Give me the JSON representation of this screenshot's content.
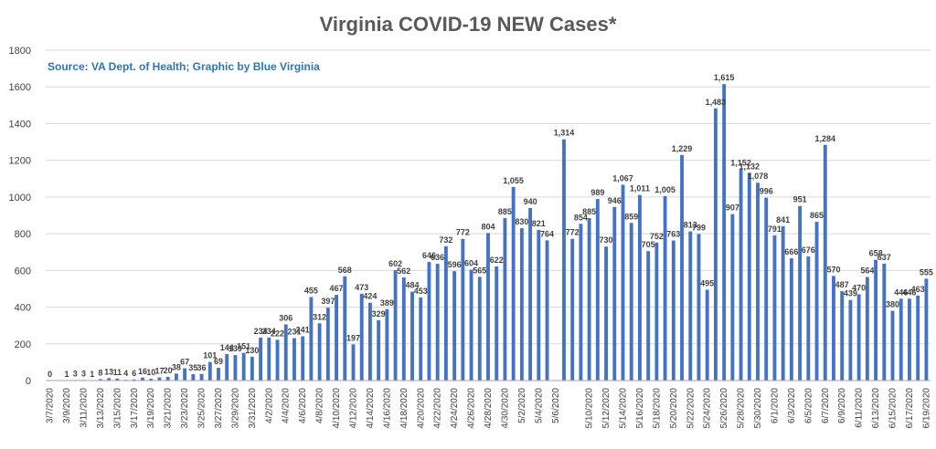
{
  "chart_data": {
    "type": "bar",
    "title": "Virginia COVID-19 NEW Cases*",
    "annotation": "Source: VA Dept. of Health; Graphic by Blue Virginia",
    "xlabel": "",
    "ylabel": "",
    "ylim": [
      0,
      1800
    ],
    "yticks": [
      0,
      200,
      400,
      600,
      800,
      1000,
      1200,
      1400,
      1600,
      1800
    ],
    "grid": true,
    "bar_color": "#4472C4",
    "categories": [
      "3/7/2020",
      "3/8/2020",
      "3/9/2020",
      "3/10/2020",
      "3/11/2020",
      "3/12/2020",
      "3/13/2020",
      "3/14/2020",
      "3/15/2020",
      "3/16/2020",
      "3/17/2020",
      "3/18/2020",
      "3/19/2020",
      "3/20/2020",
      "3/21/2020",
      "3/22/2020",
      "3/23/2020",
      "3/24/2020",
      "3/25/2020",
      "3/26/2020",
      "3/27/2020",
      "3/28/2020",
      "3/29/2020",
      "3/30/2020",
      "3/31/2020",
      "4/1/2020",
      "4/2/2020",
      "4/3/2020",
      "4/4/2020",
      "4/5/2020",
      "4/6/2020",
      "4/7/2020",
      "4/8/2020",
      "4/9/2020",
      "4/10/2020",
      "4/11/2020",
      "4/12/2020",
      "4/13/2020",
      "4/14/2020",
      "4/15/2020",
      "4/16/2020",
      "4/17/2020",
      "4/18/2020",
      "4/19/2020",
      "4/20/2020",
      "4/21/2020",
      "4/22/2020",
      "4/23/2020",
      "4/24/2020",
      "4/25/2020",
      "4/26/2020",
      "4/27/2020",
      "4/28/2020",
      "4/29/2020",
      "4/30/2020",
      "5/1/2020",
      "5/2/2020",
      "5/3/2020",
      "5/4/2020",
      "5/5/2020",
      "5/6/2020",
      "5/7/2020",
      "5/8/2020",
      "5/9/2020",
      "5/10/2020",
      "5/11/2020",
      "5/12/2020",
      "5/13/2020",
      "5/14/2020",
      "5/15/2020",
      "5/16/2020",
      "5/17/2020",
      "5/18/2020",
      "5/19/2020",
      "5/20/2020",
      "5/21/2020",
      "5/22/2020",
      "5/23/2020",
      "5/24/2020",
      "5/25/2020",
      "5/26/2020",
      "5/27/2020",
      "5/28/2020",
      "5/29/2020",
      "5/30/2020",
      "5/31/2020",
      "6/1/2020",
      "6/2/2020",
      "6/3/2020",
      "6/4/2020",
      "6/5/2020",
      "6/6/2020",
      "6/7/2020",
      "6/8/2020",
      "6/9/2020",
      "6/10/2020",
      "6/11/2020",
      "6/12/2020",
      "6/13/2020",
      "6/14/2020",
      "6/15/2020",
      "6/16/2020",
      "6/17/2020",
      "6/18/2020",
      "6/19/2020"
    ],
    "visible_tick_labels": [
      "3/7/2020",
      "3/9/2020",
      "3/11/2020",
      "3/13/2020",
      "3/15/2020",
      "3/17/2020",
      "3/19/2020",
      "3/21/2020",
      "3/23/2020",
      "3/25/2020",
      "3/27/2020",
      "3/29/2020",
      "3/31/2020",
      "4/2/2020",
      "4/4/2020",
      "4/6/2020",
      "4/8/2020",
      "4/10/2020",
      "4/12/2020",
      "4/14/2020",
      "4/16/2020",
      "4/18/2020",
      "4/20/2020",
      "4/22/2020",
      "4/24/2020",
      "4/26/2020",
      "4/28/2020",
      "4/30/2020",
      "5/2/2020",
      "5/4/2020",
      "5/6/2020",
      "5/10/2020",
      "5/12/2020",
      "5/14/2020",
      "5/16/2020",
      "5/18/2020",
      "5/20/2020",
      "5/22/2020",
      "5/24/2020",
      "5/26/2020",
      "5/28/2020",
      "5/30/2020",
      "6/1/2020",
      "6/3/2020",
      "6/5/2020",
      "6/7/2020",
      "6/9/2020",
      "6/11/2020",
      "6/13/2020",
      "6/15/2020",
      "6/17/2020",
      "6/19/2020"
    ],
    "values": [
      0,
      null,
      1,
      3,
      3,
      1,
      8,
      13,
      11,
      4,
      6,
      16,
      10,
      17,
      20,
      38,
      67,
      35,
      36,
      101,
      69,
      144,
      139,
      151,
      130,
      234,
      234,
      222,
      306,
      231,
      241,
      455,
      312,
      397,
      467,
      568,
      197,
      473,
      424,
      329,
      389,
      602,
      562,
      484,
      453,
      646,
      636,
      732,
      596,
      772,
      604,
      565,
      804,
      622,
      885,
      1055,
      830,
      940,
      821,
      764,
      null,
      1314,
      772,
      854,
      885,
      989,
      730,
      946,
      1067,
      859,
      1011,
      705,
      752,
      1005,
      763,
      1229,
      813,
      799,
      495,
      1483,
      1615,
      907,
      1152,
      1132,
      1078,
      996,
      791,
      841,
      666,
      951,
      676,
      865,
      1284,
      570,
      487,
      439,
      470,
      564,
      658,
      637,
      380,
      446,
      446,
      463,
      555
    ],
    "labels": [
      "0",
      "",
      "1",
      "3",
      "3",
      "1",
      "8",
      "13",
      "11",
      "4",
      "6",
      "16",
      "10",
      "17",
      "20",
      "38",
      "67",
      "35",
      "36",
      "101",
      "69",
      "144",
      "139",
      "151",
      "130",
      "234",
      "234",
      "222",
      "306",
      "231",
      "241",
      "455",
      "312",
      "397",
      "467",
      "568",
      "197",
      "473",
      "424",
      "329",
      "389",
      "602",
      "562",
      "484",
      "453",
      "646",
      "636",
      "732",
      "596",
      "772",
      "604",
      "565",
      "804",
      "622",
      "885",
      "1,055",
      "830",
      "940",
      "821",
      "764",
      "",
      "1,314",
      "772",
      "854",
      "885",
      "989",
      "730",
      "946",
      "1,067",
      "859",
      "1,011",
      "705",
      "752",
      "1,005",
      "763",
      "1,229",
      "813",
      "799",
      "495",
      "1,483",
      "1,615",
      "907",
      "1,152",
      "1,132",
      "1,078",
      "996",
      "791",
      "841",
      "666",
      "951",
      "676",
      "865",
      "1,284",
      "570",
      "487",
      "439",
      "470",
      "564",
      "658",
      "637",
      "380",
      "446",
      "446",
      "463",
      "555"
    ]
  }
}
